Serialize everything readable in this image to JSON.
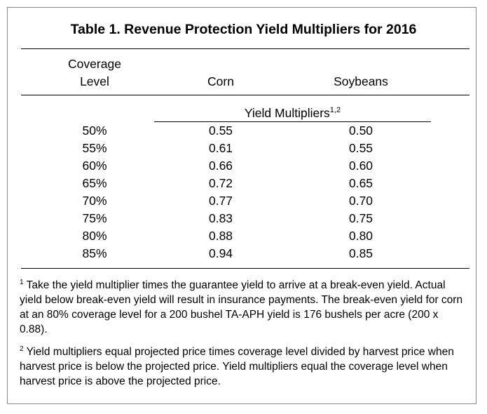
{
  "table": {
    "title": "Table 1.  Revenue Protection Yield Multipliers for 2016",
    "columns": {
      "coverage_line1": "Coverage",
      "coverage_line2": "Level",
      "corn": "Corn",
      "soybeans": "Soybeans"
    },
    "subheader": {
      "label": "Yield Multipliers",
      "superscript": "1,2"
    },
    "rows": [
      {
        "coverage": "50%",
        "corn": "0.55",
        "soybeans": "0.50"
      },
      {
        "coverage": "55%",
        "corn": "0.61",
        "soybeans": "0.55"
      },
      {
        "coverage": "60%",
        "corn": "0.66",
        "soybeans": "0.60"
      },
      {
        "coverage": "65%",
        "corn": "0.72",
        "soybeans": "0.65"
      },
      {
        "coverage": "70%",
        "corn": "0.77",
        "soybeans": "0.70"
      },
      {
        "coverage": "75%",
        "corn": "0.83",
        "soybeans": "0.75"
      },
      {
        "coverage": "80%",
        "corn": "0.88",
        "soybeans": "0.80"
      },
      {
        "coverage": "85%",
        "corn": "0.94",
        "soybeans": "0.85"
      }
    ],
    "footnotes": [
      {
        "marker": "1",
        "text": " Take the yield multiplier times the guarantee yield to arrive at a break-even yield.  Actual yield below break-even yield will result in insurance payments.  The break-even yield for corn at an 80% coverage level for a 200 bushel TA-APH yield is 176 bushels per acre (200 x 0.88)."
      },
      {
        "marker": "2",
        "text": " Yield multipliers equal projected price times coverage level divided by harvest price when harvest price is below the projected price. Yield multipliers equal the coverage level when harvest price is above the projected price."
      }
    ]
  }
}
